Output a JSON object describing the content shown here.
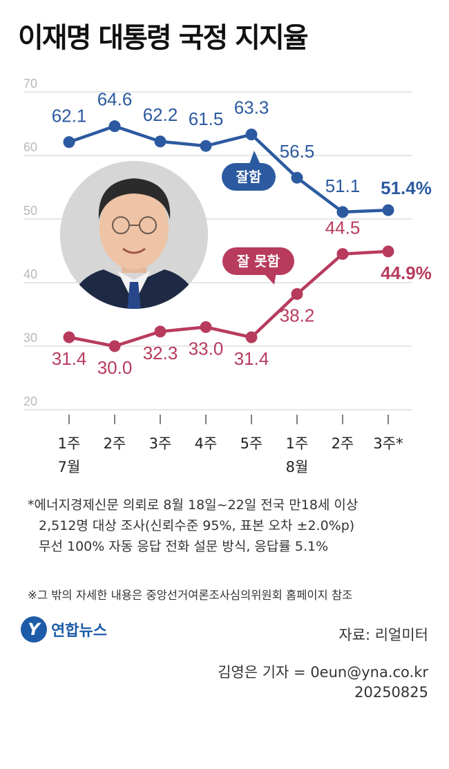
{
  "title": "이재명 대통령 국정 지지율",
  "chart_data": {
    "type": "line",
    "categories": [
      "1주",
      "2주",
      "3주",
      "4주",
      "5주",
      "1주",
      "2주",
      "3주*"
    ],
    "month_labels": [
      {
        "index": 0,
        "label": "7월"
      },
      {
        "index": 5,
        "label": "8월"
      }
    ],
    "ylim": [
      20,
      70
    ],
    "yticks": [
      "20",
      "30",
      "40",
      "50",
      "60",
      "70"
    ],
    "grid": true,
    "series": [
      {
        "name": "잘함",
        "color": "#2c5aa0",
        "values": [
          62.1,
          64.6,
          62.2,
          61.5,
          63.3,
          56.5,
          51.1,
          51.4
        ],
        "labels": [
          "62.1",
          "64.6",
          "62.2",
          "61.5",
          "63.3",
          "56.5",
          "51.1",
          "51.4%"
        ]
      },
      {
        "name": "잘 못함",
        "color": "#b83b5e",
        "values": [
          31.4,
          30.0,
          32.3,
          33.0,
          31.4,
          38.2,
          44.5,
          44.9
        ],
        "labels": [
          "31.4",
          "30.0",
          "32.3",
          "33.0",
          "31.4",
          "38.2",
          "44.5",
          "44.9%"
        ]
      }
    ]
  },
  "notes": {
    "survey": [
      "*에너지경제신문 의뢰로 8월 18일~22일 전국 만18세 이상",
      "2,512명 대상 조사(신뢰수준 95%, 표본 오차 ±2.0%p)",
      "무선 100% 자동 응답 전화 설문 방식, 응답률 5.1%"
    ],
    "reference": "※그 밖의 자세한 내용은 중앙선거여론조사심의위원회 홈페이지 참조"
  },
  "logo": {
    "mark": "Y",
    "text": "연합뉴스"
  },
  "source": "자료: 리얼미터",
  "credit": {
    "reporter": "김영은 기자 = 0eun@yna.co.kr",
    "date": "20250825"
  },
  "colors": {
    "good": "#2c5aa0",
    "bad": "#b83b5e",
    "grid": "#dddddd",
    "logo": "#1d5ba8"
  }
}
